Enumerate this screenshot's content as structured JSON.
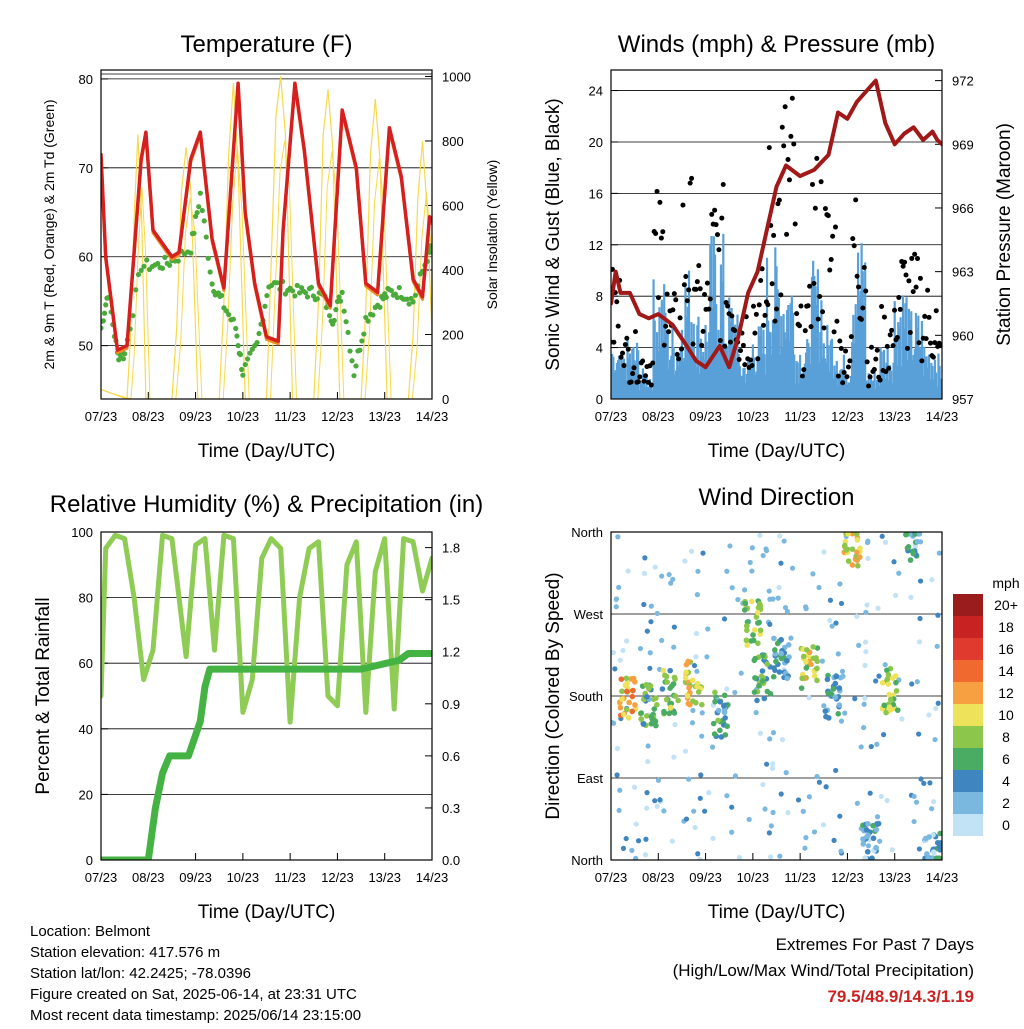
{
  "x_tick_labels": [
    "07/23",
    "08/23",
    "09/23",
    "10/23",
    "11/23",
    "12/23",
    "13/23",
    "14/23"
  ],
  "chart_data": [
    {
      "type": "line",
      "title": "Temperature (F)",
      "xlabel": "Time (Day/UTC)",
      "ylabel_left": "2m & 9m T (Red, Orange) & 2m Td (Green)",
      "ylabel_right": "Solar Insolation (Yellow)",
      "ylim_left": [
        44,
        81
      ],
      "yticks_left": [
        50,
        60,
        70,
        80
      ],
      "ylim_right": [
        0,
        1020
      ],
      "yticks_right": [
        0,
        200,
        400,
        600,
        800,
        1000
      ],
      "x_unit": "days since 07/23",
      "colors": {
        "t2m": "#d62020",
        "t9m": "#f08a24",
        "td": "#4aaa3a",
        "solar": "#f7d94c"
      },
      "series": [
        {
          "name": "2m T",
          "color": "#d62020",
          "x": [
            0,
            0.1,
            0.35,
            0.55,
            0.85,
            0.95,
            1.1,
            1.5,
            1.65,
            1.9,
            2.1,
            2.35,
            2.6,
            2.9,
            3.05,
            3.25,
            3.5,
            3.75,
            3.85,
            4.1,
            4.3,
            4.6,
            4.85,
            5.1,
            5.4,
            5.6,
            5.85,
            6.1,
            6.35,
            6.6,
            6.8,
            6.95,
            7.0
          ],
          "y": [
            71.5,
            60,
            49.5,
            50,
            71,
            74,
            63,
            60,
            60.5,
            71,
            74,
            62,
            56.5,
            79.5,
            65,
            57,
            51,
            50.5,
            63,
            79.5,
            72,
            57,
            54.5,
            76.5,
            70,
            57,
            56,
            74.5,
            69,
            57.5,
            55.5,
            64.5,
            64
          ]
        },
        {
          "name": "2m Td",
          "color": "#4aaa3a",
          "x": [
            0,
            0.15,
            0.35,
            0.5,
            0.85,
            1.2,
            1.5,
            1.9,
            2.1,
            2.35,
            2.55,
            2.85,
            3.0,
            3.3,
            3.55,
            3.9,
            4.2,
            4.45,
            4.7,
            4.9,
            5.1,
            5.35,
            5.6,
            5.9,
            6.1,
            6.35,
            6.6,
            6.9,
            7.0
          ],
          "y": [
            52,
            56,
            49,
            49,
            59,
            59,
            59.5,
            61,
            67,
            57,
            55,
            52,
            47,
            50,
            57,
            56.5,
            56,
            56,
            55.5,
            53,
            56,
            47,
            53,
            55,
            56,
            56,
            55,
            60,
            61
          ]
        },
        {
          "name": "Solar",
          "axis": "right",
          "color": "#f7d94c",
          "x": [
            0,
            0.55,
            0.62,
            0.7,
            0.78,
            0.86,
            0.95,
            1.5,
            1.6,
            1.7,
            1.8,
            1.9,
            2.05,
            2.5,
            2.6,
            2.7,
            2.8,
            2.9,
            3.05,
            3.5,
            3.6,
            3.7,
            3.8,
            3.9,
            4.05,
            4.5,
            4.6,
            4.7,
            4.8,
            4.9,
            5.05,
            5.5,
            5.6,
            5.7,
            5.8,
            5.9,
            6.05,
            6.5,
            6.6,
            6.7,
            6.8,
            6.9,
            7.0
          ],
          "y": [
            30,
            0,
            180,
            560,
            820,
            560,
            0,
            0,
            220,
            640,
            780,
            650,
            0,
            0,
            300,
            760,
            980,
            720,
            0,
            0,
            420,
            880,
            1000,
            820,
            0,
            0,
            300,
            820,
            960,
            780,
            0,
            0,
            280,
            760,
            930,
            740,
            0,
            0,
            200,
            620,
            800,
            580,
            200
          ]
        }
      ]
    },
    {
      "type": "scatter",
      "title": "Winds (mph) & Pressure (mb)",
      "xlabel": "Time (Day/UTC)",
      "ylabel_left": "Sonic Wind & Gust (Blue, Black)",
      "ylabel_right": "Station Pressure (Maroon)",
      "ylim_left": [
        0,
        25.6
      ],
      "yticks_left": [
        0,
        4,
        8,
        12,
        16,
        20,
        24
      ],
      "ylim_right": [
        957,
        972.5
      ],
      "yticks_right": [
        957,
        960,
        963,
        966,
        969,
        972
      ],
      "x_unit": "days since 07/23",
      "colors": {
        "wind": "#5aa0d8",
        "gust": "#000000",
        "pressure": "#a01818"
      },
      "series": [
        {
          "name": "Pressure",
          "axis": "right",
          "color": "#a01818",
          "x": [
            0,
            0.1,
            0.2,
            0.4,
            0.6,
            0.8,
            1.0,
            1.3,
            1.6,
            1.8,
            2.0,
            2.3,
            2.5,
            2.7,
            2.9,
            3.1,
            3.3,
            3.5,
            3.7,
            4.0,
            4.3,
            4.6,
            4.8,
            5.0,
            5.2,
            5.4,
            5.6,
            5.8,
            6.0,
            6.2,
            6.4,
            6.6,
            6.8,
            6.9,
            7.0
          ],
          "y": [
            961.5,
            963,
            962,
            962,
            961,
            960.8,
            961,
            960.5,
            959.5,
            958.8,
            958.5,
            959.5,
            958.5,
            960,
            962,
            963,
            965,
            967,
            968,
            967.5,
            967.8,
            968.5,
            970.5,
            970.2,
            971,
            971.5,
            972,
            970,
            969,
            969.5,
            969.8,
            969.2,
            969.6,
            969.2,
            969
          ]
        },
        {
          "name": "Wind",
          "color": "#5aa0d8",
          "x": [
            0,
            0.3,
            0.6,
            0.9,
            1.2,
            1.5,
            1.8,
            2.1,
            2.4,
            2.7,
            3.0,
            3.3,
            3.6,
            3.9,
            4.2,
            4.5,
            4.8,
            5.1,
            5.4,
            5.7,
            6.0,
            6.3,
            6.6,
            6.9
          ],
          "y": [
            3,
            4,
            2,
            8,
            5,
            9,
            6,
            11,
            7,
            3,
            5,
            10,
            9,
            4,
            9,
            5,
            3,
            11,
            2,
            4,
            8,
            6,
            4,
            3
          ]
        },
        {
          "name": "Gust",
          "color": "#000000",
          "x": [
            0,
            0.3,
            0.6,
            0.9,
            1.2,
            1.5,
            1.8,
            2.1,
            2.4,
            2.7,
            3.0,
            3.3,
            3.6,
            3.9,
            4.2,
            4.5,
            4.8,
            5.1,
            5.4,
            5.7,
            6.0,
            6.3,
            6.6,
            6.9
          ],
          "y": [
            10,
            5,
            4,
            16,
            8,
            17,
            10,
            16,
            12,
            8,
            10,
            20,
            24,
            7,
            19,
            16,
            5,
            18,
            4,
            7,
            12,
            11,
            9,
            5
          ]
        }
      ]
    },
    {
      "type": "line",
      "title": "Relative Humidity (%) & Precipitation (in)",
      "xlabel": "Time (Day/UTC)",
      "ylabel_left": "Percent & Total Rainfall",
      "ylim_left": [
        0,
        100
      ],
      "yticks_left": [
        0,
        20,
        40,
        60,
        80,
        100
      ],
      "ylim_right": [
        0,
        1.89
      ],
      "yticks_right": [
        "0.0",
        "0.3",
        "0.6",
        "0.9",
        "1.2",
        "1.5",
        "1.8"
      ],
      "x_unit": "days since 07/23",
      "colors": {
        "rh": "#8fcc55",
        "precip": "#44b344"
      },
      "series": [
        {
          "name": "RH",
          "color": "#8fcc55",
          "x": [
            0,
            0.1,
            0.3,
            0.5,
            0.7,
            0.9,
            1.1,
            1.3,
            1.5,
            1.8,
            2.0,
            2.2,
            2.4,
            2.6,
            2.8,
            3.0,
            3.2,
            3.4,
            3.6,
            3.8,
            4.0,
            4.2,
            4.4,
            4.6,
            4.8,
            5.0,
            5.2,
            5.4,
            5.6,
            5.8,
            6.0,
            6.2,
            6.4,
            6.6,
            6.8,
            7.0
          ],
          "y": [
            50,
            95,
            99,
            98,
            80,
            55,
            64,
            99,
            98,
            62,
            96,
            98,
            64,
            99,
            98,
            45,
            55,
            92,
            98,
            95,
            42,
            80,
            95,
            97,
            50,
            47,
            90,
            97,
            45,
            88,
            98,
            46,
            98,
            97,
            82,
            92
          ]
        },
        {
          "name": "Precip",
          "axis": "right",
          "color": "#44b344",
          "x": [
            0,
            1.0,
            1.15,
            1.3,
            1.45,
            1.6,
            1.85,
            2.1,
            2.2,
            2.3,
            2.4,
            5.5,
            6.3,
            6.5,
            7.0
          ],
          "y": [
            0,
            0,
            0.3,
            0.5,
            0.6,
            0.6,
            0.6,
            0.8,
            1.0,
            1.1,
            1.1,
            1.1,
            1.15,
            1.19,
            1.19
          ]
        }
      ]
    },
    {
      "type": "scatter",
      "title": "Wind Direction",
      "xlabel": "Time (Day/UTC)",
      "ylabel_left": "Direction (Colored By Speed)",
      "direction_labels": [
        "North",
        "East",
        "South",
        "West",
        "North"
      ],
      "ylim_left": [
        0,
        360
      ],
      "x_unit": "days since 07/23",
      "colorbar": {
        "title": "mph",
        "labels": [
          "20+",
          "18",
          "16",
          "14",
          "12",
          "10",
          "8",
          "6",
          "4",
          "2",
          "0"
        ],
        "colors": [
          "#9b1c1c",
          "#c82323",
          "#e03a2e",
          "#f06a30",
          "#f6a042",
          "#ede35a",
          "#8cc64a",
          "#4aab62",
          "#3f86c0",
          "#7ab8e0",
          "#c2e2f6"
        ]
      },
      "clusters": [
        {
          "x": 0.35,
          "dir": 180,
          "speed": 11
        },
        {
          "x": 0.8,
          "dir": 170,
          "speed": 6
        },
        {
          "x": 1.25,
          "dir": 185,
          "speed": 7
        },
        {
          "x": 1.75,
          "dir": 195,
          "speed": 10
        },
        {
          "x": 2.3,
          "dir": 160,
          "speed": 5
        },
        {
          "x": 3.0,
          "dir": 260,
          "speed": 8
        },
        {
          "x": 3.2,
          "dir": 200,
          "speed": 6
        },
        {
          "x": 3.6,
          "dir": 220,
          "speed": 4
        },
        {
          "x": 4.2,
          "dir": 210,
          "speed": 9
        },
        {
          "x": 4.7,
          "dir": 180,
          "speed": 4
        },
        {
          "x": 5.1,
          "dir": 345,
          "speed": 10
        },
        {
          "x": 5.5,
          "dir": 20,
          "speed": 3
        },
        {
          "x": 5.9,
          "dir": 185,
          "speed": 8
        },
        {
          "x": 6.4,
          "dir": 350,
          "speed": 4
        },
        {
          "x": 6.8,
          "dir": 10,
          "speed": 3
        }
      ]
    }
  ],
  "info": {
    "location": "Location: Belmont",
    "elevation": "Station elevation: 417.576 m",
    "latlon": "Station lat/lon: 42.2425; -78.0396",
    "created": "Figure created on Sat, 2025-06-14, at 23:31 UTC",
    "recent": "Most recent data timestamp: 2025/06/14 23:15:00"
  },
  "extremes": {
    "title": "Extremes For Past 7 Days",
    "subtitle": "(High/Low/Max Wind/Total Precipitation)",
    "values": "79.5/48.9/14.3/1.19"
  }
}
